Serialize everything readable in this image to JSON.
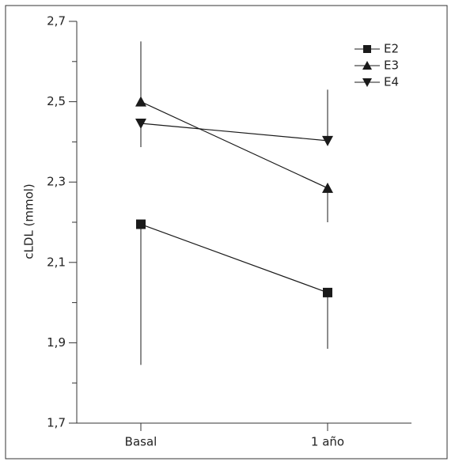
{
  "chart_data": {
    "type": "line",
    "y_label": "cLDL (mmol)",
    "categories": [
      "Basal",
      "1 año"
    ],
    "ylim": [
      1.7,
      2.7
    ],
    "yticks": [
      {
        "value": 1.7,
        "label": "1,7"
      },
      {
        "value": 1.9,
        "label": "1,9"
      },
      {
        "value": 2.1,
        "label": "2,1"
      },
      {
        "value": 2.3,
        "label": "2,3"
      },
      {
        "value": 2.5,
        "label": "2,5"
      },
      {
        "value": 2.7,
        "label": "2,7"
      }
    ],
    "yminorticks": [
      1.8,
      2.0,
      2.2,
      2.4,
      2.6
    ],
    "legend": "top-right",
    "series": [
      {
        "name": "E2",
        "color": "#1a1a1a",
        "marker": "square",
        "values": [
          2.195,
          2.025
        ],
        "err_lo": [
          1.845,
          1.885
        ],
        "err_hi": [
          null,
          null
        ]
      },
      {
        "name": "E3",
        "color": "#1a1a1a",
        "marker": "triangle-up",
        "values": [
          2.5,
          2.285
        ],
        "err_lo": [
          null,
          2.2
        ],
        "err_hi": [
          2.65,
          null
        ]
      },
      {
        "name": "E4",
        "color": "#1a1a1a",
        "marker": "triangle-down",
        "values": [
          2.446,
          2.403
        ],
        "err_lo": [
          2.387,
          null
        ],
        "err_hi": [
          null,
          2.53
        ]
      }
    ]
  }
}
